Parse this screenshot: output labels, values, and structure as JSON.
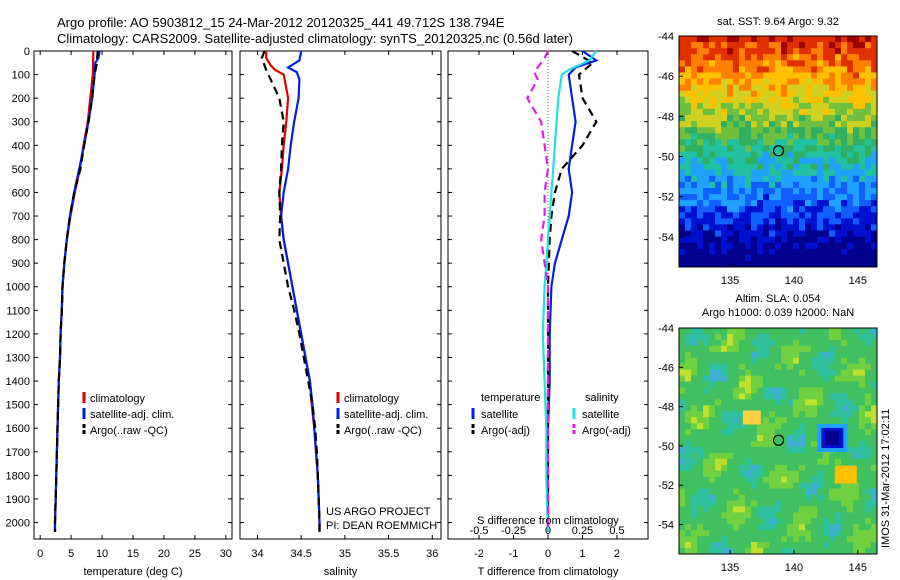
{
  "header": {
    "line1": "Argo profile: AO 5903812_15 24-Mar-2012 20120325_441 49.712S 138.794E",
    "line2": "Climatology: CARS2009. Satellite-adjusted climatology: synTS_20120325.nc (0.56d later)"
  },
  "colors": {
    "climatology": "#e00000",
    "satellite": "#0020e0",
    "argo": "#000000",
    "satellite_s": "#20e0e0",
    "argo_s": "#e020e0"
  },
  "chart_data": [
    {
      "type": "line",
      "panel": "temperature",
      "xlabel": "temperature (deg C)",
      "xlim": [
        -1,
        31
      ],
      "ylim": [
        2070,
        0
      ],
      "xticks": [
        "0",
        "5",
        "10",
        "15",
        "20",
        "25",
        "30"
      ],
      "yticks": [
        "0",
        "100",
        "200",
        "300",
        "400",
        "500",
        "600",
        "700",
        "800",
        "900",
        "1000",
        "1100",
        "1200",
        "1300",
        "1400",
        "1500",
        "1600",
        "1700",
        "1800",
        "1900",
        "2000"
      ],
      "legend": [
        "climatology",
        "satellite-adj. clim.",
        "Argo(..raw -QC)"
      ],
      "legend_placement": "lower-center",
      "series": [
        {
          "name": "climatology",
          "color": "#e00000",
          "dash": "",
          "points": [
            [
              8.6,
              0
            ],
            [
              8.5,
              100
            ],
            [
              8.1,
              200
            ],
            [
              7.7,
              300
            ],
            [
              7.0,
              400
            ],
            [
              6.4,
              500
            ],
            [
              5.6,
              600
            ],
            [
              4.9,
              700
            ],
            [
              4.3,
              800
            ],
            [
              3.9,
              900
            ],
            [
              3.6,
              1000
            ],
            [
              3.5,
              1100
            ],
            [
              3.3,
              1200
            ],
            [
              3.2,
              1300
            ],
            [
              3.0,
              1400
            ],
            [
              2.9,
              1500
            ],
            [
              2.8,
              1600
            ],
            [
              2.7,
              1700
            ],
            [
              2.6,
              1800
            ],
            [
              2.5,
              1900
            ],
            [
              2.4,
              2000
            ],
            [
              2.4,
              2040
            ]
          ]
        },
        {
          "name": "satellite-adj. clim.",
          "color": "#0020e0",
          "dash": "",
          "points": [
            [
              9.6,
              0
            ],
            [
              9.4,
              30
            ],
            [
              8.9,
              50
            ],
            [
              8.8,
              100
            ],
            [
              8.4,
              200
            ],
            [
              7.8,
              300
            ],
            [
              7.1,
              400
            ],
            [
              6.3,
              500
            ],
            [
              5.5,
              600
            ],
            [
              4.8,
              700
            ],
            [
              4.3,
              800
            ],
            [
              3.9,
              900
            ],
            [
              3.6,
              1000
            ],
            [
              3.5,
              1100
            ],
            [
              3.3,
              1200
            ],
            [
              3.2,
              1300
            ],
            [
              3.0,
              1400
            ],
            [
              2.9,
              1500
            ],
            [
              2.8,
              1600
            ],
            [
              2.7,
              1700
            ],
            [
              2.6,
              1800
            ],
            [
              2.5,
              1900
            ],
            [
              2.4,
              2000
            ],
            [
              2.4,
              2040
            ]
          ]
        },
        {
          "name": "Argo(..raw -QC)",
          "color": "#000000",
          "dash": "8 5",
          "points": [
            [
              9.3,
              0
            ],
            [
              9.1,
              60
            ],
            [
              8.8,
              100
            ],
            [
              8.4,
              200
            ],
            [
              7.8,
              300
            ],
            [
              7.1,
              400
            ],
            [
              6.5,
              500
            ],
            [
              5.5,
              600
            ],
            [
              4.8,
              700
            ],
            [
              4.3,
              800
            ],
            [
              3.9,
              900
            ],
            [
              3.6,
              1000
            ],
            [
              3.5,
              1100
            ],
            [
              3.3,
              1200
            ],
            [
              3.2,
              1300
            ],
            [
              3.0,
              1400
            ],
            [
              2.9,
              1500
            ],
            [
              2.8,
              1600
            ],
            [
              2.7,
              1700
            ],
            [
              2.6,
              1800
            ],
            [
              2.5,
              1900
            ],
            [
              2.4,
              2000
            ],
            [
              2.4,
              2040
            ]
          ]
        }
      ]
    },
    {
      "type": "line",
      "panel": "salinity",
      "xlabel": "salinity",
      "xlim": [
        33.8,
        36.1
      ],
      "ylim": [
        2070,
        0
      ],
      "xticks": [
        "34",
        "34.5",
        "35",
        "35.5",
        "36"
      ],
      "legend": [
        "climatology",
        "satellite-adj. clim.",
        "Argo(..raw -QC)"
      ],
      "legend_placement": "lower-right",
      "annotations": [
        "US ARGO PROJECT",
        "PI: DEAN ROEMMICH"
      ],
      "series": [
        {
          "name": "climatology",
          "color": "#e00000",
          "dash": "",
          "points": [
            [
              34.1,
              0
            ],
            [
              34.1,
              30
            ],
            [
              34.15,
              60
            ],
            [
              34.2,
              80
            ],
            [
              34.3,
              100
            ],
            [
              34.35,
              200
            ],
            [
              34.33,
              300
            ],
            [
              34.3,
              400
            ],
            [
              34.28,
              500
            ],
            [
              34.25,
              600
            ],
            [
              34.27,
              700
            ],
            [
              34.3,
              800
            ],
            [
              34.35,
              900
            ],
            [
              34.4,
              1000
            ],
            [
              34.45,
              1100
            ],
            [
              34.5,
              1200
            ],
            [
              34.55,
              1300
            ],
            [
              34.6,
              1400
            ],
            [
              34.62,
              1500
            ],
            [
              34.65,
              1600
            ],
            [
              34.67,
              1700
            ],
            [
              34.69,
              1800
            ],
            [
              34.7,
              1900
            ],
            [
              34.71,
              2000
            ],
            [
              34.71,
              2040
            ]
          ]
        },
        {
          "name": "satellite-adj. clim.",
          "color": "#0020e0",
          "dash": "",
          "points": [
            [
              34.5,
              0
            ],
            [
              34.48,
              40
            ],
            [
              34.35,
              70
            ],
            [
              34.45,
              90
            ],
            [
              34.48,
              120
            ],
            [
              34.47,
              200
            ],
            [
              34.42,
              300
            ],
            [
              34.38,
              400
            ],
            [
              34.35,
              500
            ],
            [
              34.3,
              600
            ],
            [
              34.27,
              700
            ],
            [
              34.3,
              800
            ],
            [
              34.35,
              900
            ],
            [
              34.4,
              1000
            ],
            [
              34.45,
              1100
            ],
            [
              34.5,
              1200
            ],
            [
              34.55,
              1300
            ],
            [
              34.6,
              1400
            ],
            [
              34.63,
              1500
            ],
            [
              34.65,
              1600
            ],
            [
              34.67,
              1700
            ],
            [
              34.69,
              1800
            ],
            [
              34.7,
              1900
            ],
            [
              34.71,
              2000
            ],
            [
              34.71,
              2040
            ]
          ]
        },
        {
          "name": "Argo(..raw -QC)",
          "color": "#000000",
          "dash": "8 5",
          "points": [
            [
              34.08,
              0
            ],
            [
              34.05,
              30
            ],
            [
              34.1,
              80
            ],
            [
              34.15,
              120
            ],
            [
              34.25,
              200
            ],
            [
              34.3,
              300
            ],
            [
              34.28,
              400
            ],
            [
              34.27,
              500
            ],
            [
              34.25,
              600
            ],
            [
              34.26,
              700
            ],
            [
              34.25,
              800
            ],
            [
              34.3,
              900
            ],
            [
              34.35,
              1000
            ],
            [
              34.42,
              1100
            ],
            [
              34.48,
              1200
            ],
            [
              34.53,
              1300
            ],
            [
              34.58,
              1400
            ],
            [
              34.63,
              1500
            ],
            [
              34.66,
              1600
            ],
            [
              34.68,
              1700
            ],
            [
              34.69,
              1800
            ],
            [
              34.7,
              1900
            ],
            [
              34.71,
              2000
            ],
            [
              34.71,
              2040
            ]
          ]
        }
      ]
    },
    {
      "type": "line",
      "panel": "differences",
      "xlabel": "T difference from climatology",
      "xlabel2": "S difference from climatology",
      "xlim": [
        -2.9,
        2.9
      ],
      "ylim": [
        2070,
        0
      ],
      "xticks": [
        "-2",
        "-1",
        "0",
        "1",
        "2"
      ],
      "xticks2": [
        "-0.5",
        "-0.25",
        "0",
        "0.25",
        "0.5"
      ],
      "legend_headers": [
        "temperature",
        "salinity"
      ],
      "legend": [
        "satellite",
        "Argo(-adj)",
        "satellite",
        "Argo(-adj)"
      ],
      "legend_placement": "lower-center",
      "series": [
        {
          "name": "satellite",
          "quantity": "temperature",
          "color": "#0020e0",
          "dash": "",
          "points": [
            [
              1.0,
              0
            ],
            [
              1.4,
              40
            ],
            [
              0.8,
              70
            ],
            [
              0.6,
              100
            ],
            [
              0.7,
              200
            ],
            [
              0.8,
              300
            ],
            [
              0.7,
              400
            ],
            [
              0.6,
              500
            ],
            [
              0.7,
              600
            ],
            [
              0.6,
              700
            ],
            [
              0.4,
              800
            ],
            [
              0.2,
              900
            ],
            [
              0.1,
              1000
            ],
            [
              0.05,
              1200
            ],
            [
              0.05,
              1400
            ],
            [
              0.0,
              1600
            ],
            [
              0.0,
              1800
            ],
            [
              0.0,
              2040
            ]
          ]
        },
        {
          "name": "Argo(-adj)",
          "quantity": "temperature",
          "color": "#000000",
          "dash": "8 5",
          "points": [
            [
              0.7,
              0
            ],
            [
              1.3,
              50
            ],
            [
              0.9,
              100
            ],
            [
              1.0,
              200
            ],
            [
              1.4,
              300
            ],
            [
              1.0,
              400
            ],
            [
              0.4,
              500
            ],
            [
              0.2,
              600
            ],
            [
              0.1,
              700
            ],
            [
              0.05,
              800
            ],
            [
              0.0,
              1000
            ],
            [
              0.0,
              1400
            ],
            [
              0.0,
              2040
            ]
          ]
        },
        {
          "name": "satellite",
          "quantity": "salinity",
          "color": "#20e0e0",
          "dash": "",
          "points": [
            [
              1.4,
              0
            ],
            [
              1.2,
              40
            ],
            [
              0.6,
              80
            ],
            [
              0.4,
              100
            ],
            [
              0.3,
              200
            ],
            [
              0.25,
              300
            ],
            [
              0.2,
              400
            ],
            [
              0.15,
              500
            ],
            [
              0.1,
              600
            ],
            [
              0.05,
              700
            ],
            [
              0.0,
              800
            ],
            [
              -0.1,
              1000
            ],
            [
              -0.15,
              1200
            ],
            [
              -0.1,
              1400
            ],
            [
              -0.05,
              1600
            ],
            [
              -0.05,
              1800
            ],
            [
              0.0,
              2040
            ]
          ]
        },
        {
          "name": "Argo(-adj)",
          "quantity": "salinity",
          "color": "#e020e0",
          "dash": "8 5",
          "points": [
            [
              0.0,
              0
            ],
            [
              -0.1,
              30
            ],
            [
              -0.4,
              90
            ],
            [
              -0.3,
              120
            ],
            [
              -0.6,
              200
            ],
            [
              -0.2,
              300
            ],
            [
              -0.1,
              400
            ],
            [
              0.0,
              500
            ],
            [
              -0.1,
              600
            ],
            [
              -0.1,
              700
            ],
            [
              -0.2,
              800
            ],
            [
              -0.1,
              900
            ],
            [
              0.0,
              1000
            ],
            [
              0.0,
              2040
            ]
          ]
        }
      ]
    },
    {
      "type": "heatmap",
      "panel": "sst_map",
      "title": "sat. SST: 9.64  Argo: 9.32",
      "xlim": [
        131,
        146.5
      ],
      "ylim": [
        -55.5,
        -44
      ],
      "xticks": [
        "135",
        "140",
        "145"
      ],
      "yticks": [
        "-44",
        "-46",
        "-48",
        "-50",
        "-52",
        "-54"
      ],
      "marker": {
        "lon": 138.794,
        "lat": -49.712
      }
    },
    {
      "type": "heatmap",
      "panel": "sla_map",
      "title": "Altim. SLA: 0.054",
      "subtitle": "Argo h1000: 0.039 h2000: NaN",
      "side_label": "IMOS 31-Mar-2012 17:02:11",
      "xlim": [
        131,
        146.5
      ],
      "ylim": [
        -55.5,
        -44
      ],
      "xticks": [
        "135",
        "140",
        "145"
      ],
      "yticks": [
        "-44",
        "-46",
        "-48",
        "-50",
        "-52",
        "-54"
      ],
      "marker": {
        "lon": 138.794,
        "lat": -49.712
      }
    }
  ]
}
